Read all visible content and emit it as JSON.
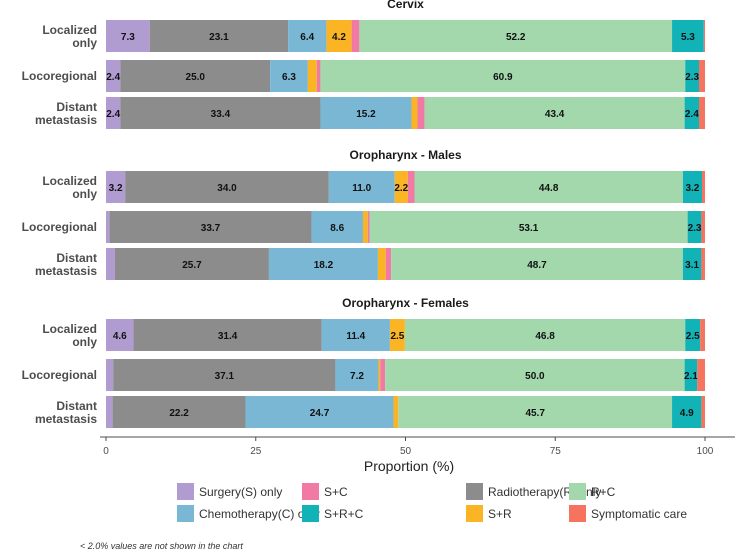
{
  "chart_data": {
    "type": "bar",
    "orientation": "horizontal-stacked",
    "xlabel": "Proportion (%)",
    "xlim": [
      0,
      100
    ],
    "xticks": [
      0,
      25,
      50,
      75,
      100
    ],
    "legend_position": "bottom",
    "footnote": "< 2.0% values are not shown in the chart",
    "series": [
      {
        "name": "Surgery(S) only",
        "color": "#b19cd1"
      },
      {
        "name": "Radiotherapy(R) only",
        "color": "#8c8c8c"
      },
      {
        "name": "Chemotherapy(C) only",
        "color": "#79b7d4"
      },
      {
        "name": "S+R",
        "color": "#fbb524"
      },
      {
        "name": "S+C",
        "color": "#f07aa3"
      },
      {
        "name": "R+C",
        "color": "#a2d8ac"
      },
      {
        "name": "S+R+C",
        "color": "#11b3b7"
      },
      {
        "name": "Symptomatic care",
        "color": "#f5735f"
      }
    ],
    "legend_order": [
      0,
      2,
      4,
      6,
      1,
      3,
      5,
      7
    ],
    "panels": [
      {
        "title": "Cervix",
        "rows": [
          {
            "category": [
              "Localized",
              "only"
            ],
            "values": [
              7.3,
              23.1,
              6.4,
              4.2,
              1.3,
              52.2,
              5.3,
              0.2
            ]
          },
          {
            "category": [
              "Locoregional"
            ],
            "values": [
              2.4,
              25.0,
              6.3,
              1.5,
              0.6,
              60.9,
              2.3,
              1.0
            ]
          },
          {
            "category": [
              "Distant",
              "metastasis"
            ],
            "values": [
              2.4,
              33.4,
              15.2,
              1.0,
              1.2,
              43.4,
              2.4,
              1.0
            ]
          }
        ]
      },
      {
        "title": "Oropharynx - Males",
        "rows": [
          {
            "category": [
              "Localized",
              "only"
            ],
            "values": [
              3.2,
              34.0,
              11.0,
              2.2,
              1.1,
              44.8,
              3.2,
              0.5
            ]
          },
          {
            "category": [
              "Locoregional"
            ],
            "values": [
              0.6,
              33.7,
              8.6,
              0.8,
              0.3,
              53.1,
              2.3,
              0.6
            ]
          },
          {
            "category": [
              "Distant",
              "metastasis"
            ],
            "values": [
              1.5,
              25.7,
              18.2,
              1.3,
              0.9,
              48.7,
              3.1,
              0.6
            ]
          }
        ]
      },
      {
        "title": "Oropharynx - Females",
        "rows": [
          {
            "category": [
              "Localized",
              "only"
            ],
            "values": [
              4.6,
              31.4,
              11.4,
              2.5,
              0.0,
              46.8,
              2.5,
              0.8
            ]
          },
          {
            "category": [
              "Locoregional"
            ],
            "values": [
              1.2,
              37.1,
              7.2,
              0.3,
              0.8,
              50.0,
              2.1,
              1.3
            ]
          },
          {
            "category": [
              "Distant",
              "metastasis"
            ],
            "values": [
              1.1,
              22.2,
              24.7,
              0.8,
              0.0,
              45.7,
              4.9,
              0.6
            ]
          }
        ]
      }
    ]
  }
}
